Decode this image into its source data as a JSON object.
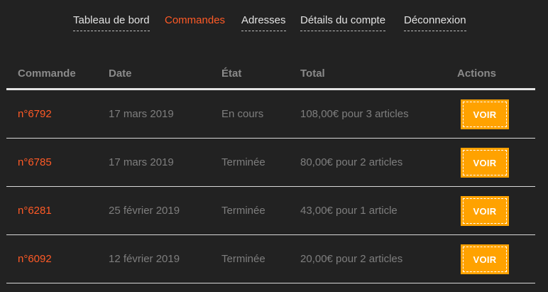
{
  "nav": {
    "items": [
      {
        "label": "Tableau de bord"
      },
      {
        "label": "Commandes"
      },
      {
        "label": "Adresses"
      },
      {
        "label": "Détails du compte"
      },
      {
        "label": "Déconnexion"
      }
    ],
    "active": "Commandes"
  },
  "table": {
    "headers": [
      "Commande",
      "Date",
      "État",
      "Total",
      "Actions"
    ],
    "rows": [
      {
        "order": "n°6792",
        "date": "17 mars 2019",
        "status": "En cours",
        "total": "108,00€ pour 3 articles",
        "action": "VOIR"
      },
      {
        "order": "n°6785",
        "date": "17 mars 2019",
        "status": "Terminée",
        "total": "80,00€ pour 2 articles",
        "action": "VOIR"
      },
      {
        "order": "n°6281",
        "date": "25 février 2019",
        "status": "Terminée",
        "total": "43,00€ pour 1 article",
        "action": "VOIR"
      },
      {
        "order": "n°6092",
        "date": "12 février 2019",
        "status": "Terminée",
        "total": "20,00€ pour 2 articles",
        "action": "VOIR"
      }
    ]
  },
  "colors": {
    "background": "#222222",
    "accent": "#ff5a26",
    "button": "#ffa200",
    "text_muted": "#7e7e7e"
  }
}
